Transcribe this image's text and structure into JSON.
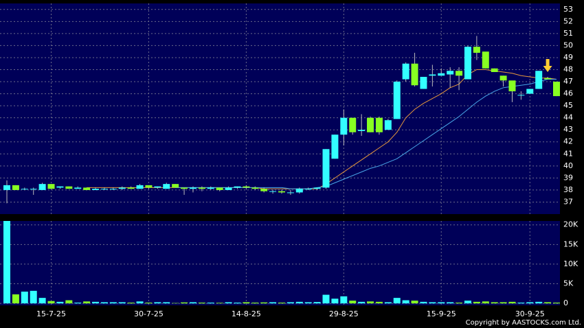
{
  "chart_data": [
    {
      "type": "candlestick",
      "categories": [
        null,
        null,
        null,
        null,
        null,
        "15-7-25",
        null,
        null,
        null,
        null,
        null,
        null,
        null,
        null,
        null,
        null,
        "30-7-25",
        null,
        null,
        null,
        null,
        null,
        null,
        null,
        null,
        null,
        null,
        "14-8-25",
        null,
        null,
        null,
        null,
        null,
        null,
        null,
        null,
        null,
        null,
        "29-8-25",
        null,
        null,
        null,
        null,
        null,
        null,
        null,
        null,
        null,
        null,
        "15-9-25",
        null,
        null,
        null,
        null,
        null,
        null,
        null,
        null,
        null,
        "30-9-25",
        null,
        null,
        null
      ],
      "open": [
        38.0,
        38.4,
        38.1,
        38.1,
        38.0,
        38.5,
        38.2,
        38.3,
        38.1,
        38.2,
        38.0,
        38.1,
        38.1,
        38.1,
        38.2,
        38.1,
        38.4,
        38.2,
        38.1,
        38.5,
        38.2,
        38.1,
        38.2,
        38.1,
        38.2,
        38.0,
        38.2,
        38.3,
        38.2,
        38.1,
        37.9,
        37.9,
        37.8,
        37.8,
        38.1,
        38.1,
        38.2,
        40.6,
        42.6,
        44.0,
        42.9,
        44.0,
        44.0,
        43.0,
        43.9,
        47.2,
        48.5,
        46.4,
        47.5,
        47.5,
        47.6,
        47.9,
        47.2,
        49.9,
        49.5,
        48.1,
        47.5,
        47.1,
        45.9,
        46.0,
        46.4,
        47.3,
        47.0
      ],
      "high": [
        38.8,
        38.4,
        38.2,
        38.2,
        38.6,
        38.5,
        38.3,
        38.3,
        38.3,
        38.2,
        38.2,
        38.2,
        38.2,
        38.3,
        38.3,
        38.5,
        38.4,
        38.3,
        38.6,
        38.5,
        38.2,
        38.3,
        38.3,
        38.3,
        38.2,
        38.3,
        38.3,
        38.4,
        38.3,
        38.2,
        38.0,
        38.0,
        38.0,
        38.2,
        38.2,
        38.2,
        41.4,
        42.6,
        44.7,
        44.0,
        44.3,
        44.1,
        44.1,
        43.9,
        47.1,
        48.6,
        49.4,
        47.4,
        48.4,
        48.1,
        48.2,
        48.2,
        50.0,
        50.8,
        49.4,
        48.1,
        47.5,
        47.0,
        46.2,
        46.4,
        47.9,
        47.4,
        47.0
      ],
      "low": [
        36.9,
        38.0,
        38.0,
        37.6,
        38.0,
        38.1,
        38.1,
        38.1,
        38.1,
        38.0,
        38.0,
        38.0,
        38.0,
        38.0,
        38.1,
        38.1,
        38.1,
        38.1,
        38.1,
        38.2,
        37.6,
        37.8,
        37.9,
        38.0,
        37.9,
        38.0,
        38.1,
        38.1,
        38.0,
        37.8,
        37.7,
        37.7,
        37.6,
        37.7,
        38.0,
        38.0,
        38.1,
        40.6,
        41.7,
        42.6,
        42.5,
        42.8,
        42.6,
        43.0,
        43.9,
        47.0,
        46.6,
        46.4,
        46.6,
        47.5,
        46.5,
        46.3,
        47.2,
        48.8,
        48.1,
        47.8,
        46.6,
        45.3,
        45.5,
        46.0,
        46.4,
        47.2,
        45.8
      ],
      "close": [
        38.4,
        38.0,
        38.1,
        38.1,
        38.5,
        38.1,
        38.3,
        38.1,
        38.2,
        38.0,
        38.1,
        38.1,
        38.1,
        38.2,
        38.1,
        38.4,
        38.2,
        38.3,
        38.5,
        38.2,
        38.1,
        38.2,
        38.1,
        38.2,
        38.0,
        38.2,
        38.3,
        38.2,
        38.1,
        37.9,
        37.9,
        37.8,
        37.8,
        38.1,
        38.1,
        38.2,
        41.4,
        42.6,
        44.0,
        42.8,
        43.0,
        42.8,
        42.8,
        43.8,
        47.0,
        48.5,
        46.7,
        47.4,
        47.6,
        47.7,
        47.9,
        47.5,
        49.9,
        49.4,
        48.1,
        47.8,
        47.1,
        46.2,
        45.9,
        46.4,
        47.9,
        47.2,
        45.8
      ],
      "up_color": "#33ffff",
      "down_color": "#88ff22",
      "series": [
        {
          "color": "#e89a3c",
          "values": [
            null,
            null,
            null,
            null,
            null,
            null,
            null,
            null,
            null,
            38.2,
            38.2,
            38.2,
            38.2,
            38.2,
            38.2,
            38.2,
            38.2,
            38.2,
            38.2,
            38.2,
            38.2,
            38.2,
            38.2,
            38.2,
            38.2,
            38.2,
            38.2,
            38.2,
            38.2,
            38.1,
            38.1,
            38.1,
            38.1,
            38.1,
            38.1,
            38.1,
            38.5,
            39.0,
            39.5,
            40.0,
            40.5,
            41.0,
            41.5,
            42.0,
            42.8,
            44.0,
            44.7,
            45.2,
            45.6,
            46.0,
            46.5,
            46.8,
            47.6,
            48.0,
            48.0,
            47.9,
            47.8,
            47.7,
            47.5,
            47.4,
            47.3,
            47.3,
            47.2
          ]
        },
        {
          "color": "#4aa8e8",
          "values": [
            null,
            null,
            null,
            null,
            null,
            null,
            null,
            null,
            null,
            null,
            null,
            null,
            null,
            null,
            null,
            null,
            null,
            null,
            null,
            38.2,
            38.2,
            38.2,
            38.2,
            38.2,
            38.2,
            38.2,
            38.2,
            38.2,
            38.2,
            38.2,
            38.2,
            38.2,
            38.1,
            38.1,
            38.1,
            38.2,
            38.3,
            38.6,
            38.9,
            39.2,
            39.5,
            39.8,
            40.0,
            40.3,
            40.6,
            41.1,
            41.6,
            42.1,
            42.6,
            43.1,
            43.6,
            44.1,
            44.7,
            45.3,
            45.8,
            46.2,
            46.5,
            46.6,
            46.7,
            46.8,
            47.0,
            47.2,
            47.2
          ]
        }
      ],
      "ylim": [
        36.0,
        53.5
      ],
      "yticks": [
        37,
        38,
        39,
        40,
        41,
        42,
        43,
        44,
        45,
        46,
        47,
        48,
        49,
        50,
        51,
        52,
        53
      ],
      "grid": true
    },
    {
      "type": "bar",
      "values": [
        21000,
        2300,
        3000,
        3200,
        1400,
        600,
        400,
        800,
        200,
        500,
        400,
        300,
        300,
        300,
        200,
        500,
        200,
        300,
        300,
        100,
        250,
        300,
        200,
        200,
        150,
        300,
        200,
        300,
        200,
        250,
        300,
        200,
        300,
        400,
        300,
        350,
        2200,
        1200,
        1800,
        700,
        400,
        500,
        400,
        300,
        1400,
        800,
        700,
        400,
        300,
        300,
        300,
        200,
        700,
        400,
        500,
        300,
        300,
        400,
        200,
        300,
        400,
        300,
        200
      ],
      "ylim": [
        -500,
        21000
      ],
      "yticks": [
        0,
        {
          "value": 5000,
          "label": "5K"
        },
        {
          "value": 10000,
          "label": "10K"
        },
        {
          "value": 15000,
          "label": "15K"
        },
        {
          "value": 20000,
          "label": "20K"
        }
      ],
      "grid": true
    }
  ],
  "copyright": "Copyright by AASTOCKS.com Ltd."
}
